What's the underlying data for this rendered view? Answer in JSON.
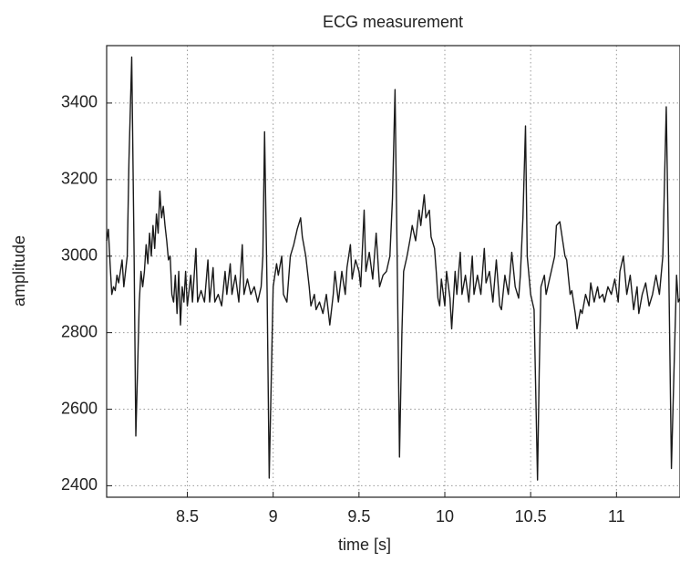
{
  "chart_data": {
    "type": "line",
    "title": "ECG measurement",
    "xlabel": "time [s]",
    "ylabel": "amplitude",
    "color": "#1a1a1a",
    "grid": true,
    "xlim": [
      8.03,
      11.37
    ],
    "ylim": [
      2370,
      3550
    ],
    "xticks": [
      8.5,
      9,
      9.5,
      10,
      10.5,
      11
    ],
    "yticks": [
      2400,
      2600,
      2800,
      3000,
      3200,
      3400
    ],
    "x": [
      8.03,
      8.04,
      8.05,
      8.06,
      8.07,
      8.08,
      8.09,
      8.1,
      8.11,
      8.12,
      8.13,
      8.14,
      8.15,
      8.16,
      8.176,
      8.19,
      8.2,
      8.21,
      8.22,
      8.23,
      8.24,
      8.25,
      8.26,
      8.27,
      8.28,
      8.29,
      8.3,
      8.31,
      8.32,
      8.33,
      8.34,
      8.35,
      8.36,
      8.37,
      8.38,
      8.39,
      8.4,
      8.41,
      8.42,
      8.43,
      8.44,
      8.45,
      8.46,
      8.47,
      8.48,
      8.49,
      8.5,
      8.52,
      8.53,
      8.55,
      8.56,
      8.58,
      8.6,
      8.62,
      8.63,
      8.65,
      8.66,
      8.68,
      8.7,
      8.72,
      8.73,
      8.75,
      8.76,
      8.78,
      8.8,
      8.82,
      8.83,
      8.85,
      8.87,
      8.89,
      8.91,
      8.93,
      8.94,
      8.95,
      8.965,
      8.977,
      8.99,
      9.0,
      9.02,
      9.03,
      9.05,
      9.06,
      9.08,
      9.1,
      9.12,
      9.14,
      9.16,
      9.17,
      9.19,
      9.21,
      9.22,
      9.24,
      9.25,
      9.27,
      9.29,
      9.31,
      9.33,
      9.35,
      9.36,
      9.38,
      9.4,
      9.42,
      9.43,
      9.45,
      9.46,
      9.48,
      9.5,
      9.51,
      9.53,
      9.54,
      9.56,
      9.58,
      9.6,
      9.62,
      9.64,
      9.66,
      9.68,
      9.695,
      9.71,
      9.725,
      9.736,
      9.75,
      9.76,
      9.78,
      9.8,
      9.81,
      9.83,
      9.85,
      9.86,
      9.88,
      9.89,
      9.91,
      9.92,
      9.94,
      9.95,
      9.96,
      9.97,
      9.98,
      10.0,
      10.01,
      10.03,
      10.04,
      10.06,
      10.07,
      10.09,
      10.1,
      10.12,
      10.14,
      10.16,
      10.17,
      10.19,
      10.21,
      10.23,
      10.24,
      10.26,
      10.28,
      10.3,
      10.32,
      10.33,
      10.35,
      10.37,
      10.39,
      10.41,
      10.43,
      10.44,
      10.455,
      10.47,
      10.48,
      10.5,
      10.52,
      10.54,
      10.55,
      10.56,
      10.58,
      10.59,
      10.61,
      10.62,
      10.64,
      10.65,
      10.67,
      10.68,
      10.7,
      10.71,
      10.73,
      10.74,
      10.76,
      10.77,
      10.79,
      10.8,
      10.82,
      10.84,
      10.85,
      10.87,
      10.89,
      10.9,
      10.92,
      10.93,
      10.95,
      10.97,
      10.99,
      11.01,
      11.02,
      11.04,
      11.06,
      11.08,
      11.1,
      11.12,
      11.13,
      11.15,
      11.17,
      11.19,
      11.21,
      11.23,
      11.25,
      11.27,
      11.28,
      11.29,
      11.305,
      11.32,
      11.335,
      11.35,
      11.36,
      11.37
    ],
    "values": [
      3040,
      3070,
      2980,
      2900,
      2920,
      2910,
      2950,
      2930,
      2960,
      2990,
      2920,
      2960,
      3000,
      3250,
      3520,
      3000,
      2530,
      2700,
      2880,
      2960,
      2920,
      2960,
      3030,
      2980,
      3060,
      3000,
      3080,
      3020,
      3110,
      3060,
      3170,
      3100,
      3130,
      3080,
      3040,
      2990,
      3000,
      2900,
      2880,
      2950,
      2850,
      2960,
      2820,
      2920,
      2880,
      2960,
      2870,
      2950,
      2880,
      3020,
      2880,
      2910,
      2880,
      2990,
      2880,
      2970,
      2880,
      2900,
      2870,
      2960,
      2900,
      2980,
      2900,
      2950,
      2880,
      3030,
      2900,
      2940,
      2900,
      2920,
      2880,
      2920,
      3000,
      3325,
      2900,
      2420,
      2700,
      2920,
      2980,
      2950,
      3000,
      2900,
      2880,
      3000,
      3030,
      3070,
      3100,
      3050,
      3000,
      2920,
      2870,
      2900,
      2860,
      2880,
      2850,
      2900,
      2820,
      2900,
      2960,
      2880,
      2960,
      2900,
      2970,
      3030,
      2940,
      2990,
      2960,
      2920,
      3120,
      2960,
      3010,
      2940,
      3060,
      2920,
      2950,
      2960,
      3000,
      3150,
      3435,
      2900,
      2475,
      2800,
      2960,
      3000,
      3050,
      3080,
      3040,
      3120,
      3080,
      3160,
      3100,
      3120,
      3050,
      3020,
      2960,
      2890,
      2870,
      2940,
      2870,
      2960,
      2890,
      2810,
      2960,
      2900,
      3010,
      2900,
      2950,
      2880,
      3000,
      2900,
      2950,
      2900,
      3020,
      2930,
      2960,
      2880,
      2990,
      2870,
      2860,
      2950,
      2900,
      3010,
      2920,
      2890,
      2950,
      3100,
      3340,
      3000,
      2900,
      2860,
      2415,
      2700,
      2920,
      2950,
      2900,
      2940,
      2960,
      3000,
      3080,
      3090,
      3060,
      3000,
      2990,
      2900,
      2910,
      2850,
      2810,
      2860,
      2850,
      2900,
      2870,
      2930,
      2880,
      2920,
      2890,
      2900,
      2880,
      2920,
      2900,
      2940,
      2880,
      2960,
      3000,
      2900,
      2950,
      2860,
      2920,
      2850,
      2900,
      2930,
      2870,
      2900,
      2950,
      2900,
      3000,
      3200,
      3390,
      2950,
      2445,
      2700,
      2950,
      2880,
      2890
    ]
  }
}
